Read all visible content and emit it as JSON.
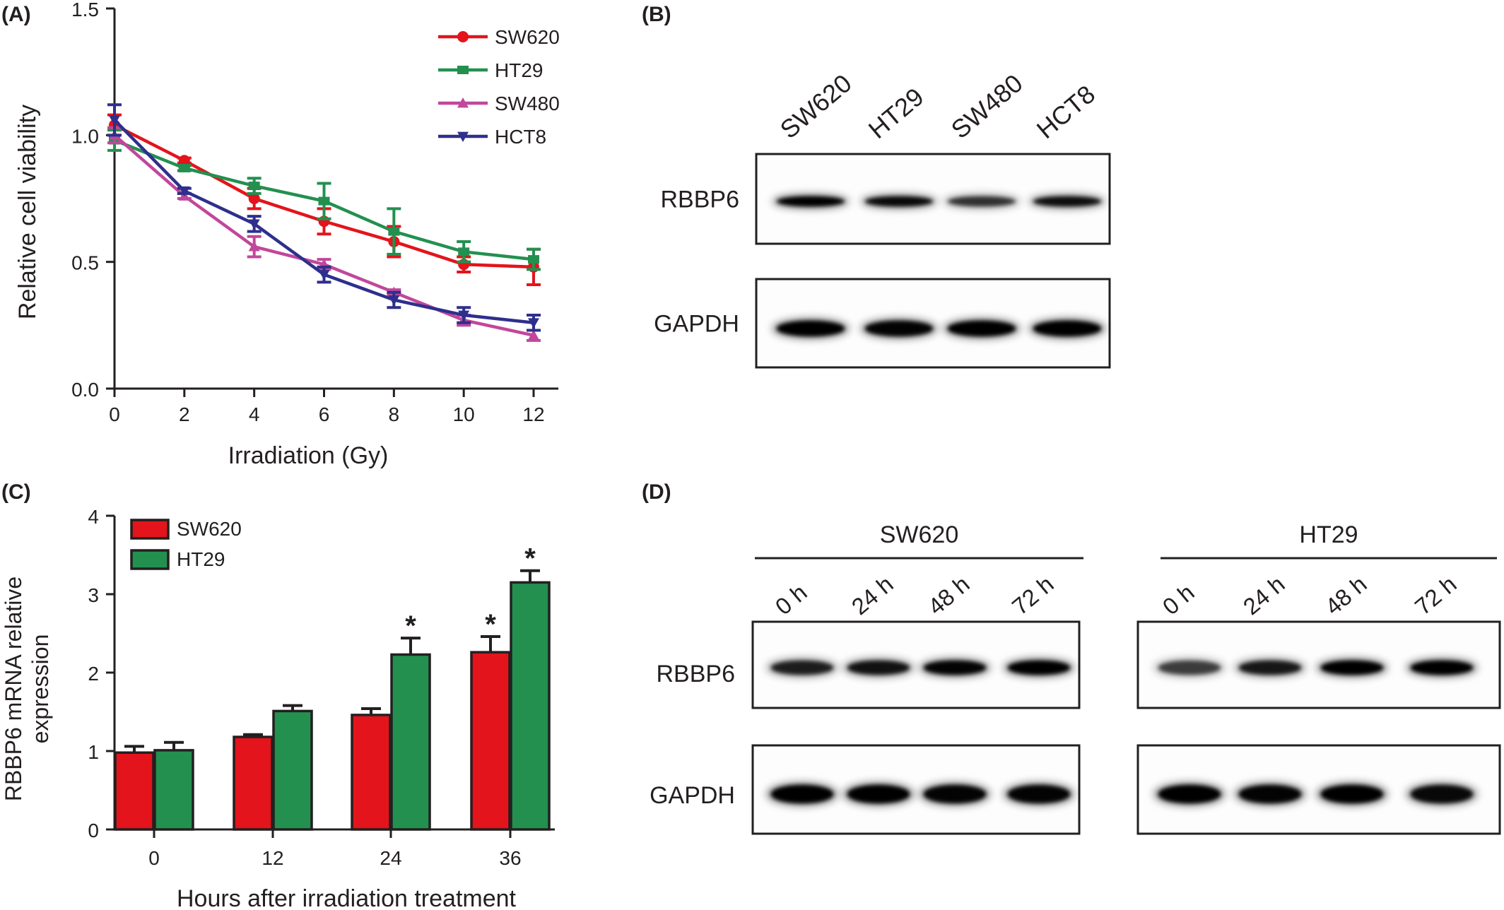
{
  "panels": {
    "a": {
      "label": "(A)"
    },
    "b": {
      "label": "(B)"
    },
    "c": {
      "label": "(C)"
    },
    "d": {
      "label": "(D)"
    }
  },
  "colors": {
    "SW620": "#e3141b",
    "HT29": "#23904f",
    "SW480": "#c1479b",
    "HCT8": "#2e2f8c",
    "axis": "#231f20"
  },
  "chart_data": [
    {
      "id": "A",
      "type": "line",
      "xlabel": "Irradiation  (Gy)",
      "ylabel": "Relative cell viability",
      "x": [
        0,
        2,
        4,
        6,
        8,
        10,
        12
      ],
      "xticks": [
        "0",
        "2",
        "4",
        "6",
        "8",
        "10",
        "12"
      ],
      "yticks": [
        "0.0",
        "0.5",
        "1.0",
        "1.5"
      ],
      "xlim": [
        0,
        12
      ],
      "ylim": [
        0,
        1.5
      ],
      "legend_position": "top-right",
      "series": [
        {
          "name": "SW620",
          "marker": "circle",
          "values": [
            1.04,
            0.9,
            0.75,
            0.66,
            0.58,
            0.49,
            0.48
          ],
          "errors": [
            0.04,
            0.01,
            0.04,
            0.05,
            0.06,
            0.03,
            0.07
          ]
        },
        {
          "name": "HT29",
          "marker": "square",
          "values": [
            0.98,
            0.87,
            0.8,
            0.74,
            0.62,
            0.54,
            0.51
          ],
          "errors": [
            0.04,
            0.01,
            0.03,
            0.07,
            0.09,
            0.04,
            0.04
          ]
        },
        {
          "name": "SW480",
          "marker": "triangle",
          "values": [
            1.0,
            0.76,
            0.56,
            0.49,
            0.38,
            0.27,
            0.21
          ],
          "errors": [
            0.03,
            0.01,
            0.04,
            0.02,
            0.01,
            0.02,
            0.02
          ]
        },
        {
          "name": "HCT8",
          "marker": "triangle-down",
          "values": [
            1.06,
            0.78,
            0.65,
            0.45,
            0.35,
            0.29,
            0.26
          ],
          "errors": [
            0.06,
            0.01,
            0.03,
            0.03,
            0.03,
            0.03,
            0.03
          ]
        }
      ]
    },
    {
      "id": "C",
      "type": "bar",
      "xlabel": "Hours after irradiation treatment",
      "ylabel": [
        "RBBP6 mRNA relative",
        "expression"
      ],
      "categories": [
        "0",
        "12",
        "24",
        "36"
      ],
      "yticks": [
        "0",
        "1",
        "2",
        "3",
        "4"
      ],
      "ylim": [
        0,
        4
      ],
      "legend_position": "top-left",
      "significance_mark": "*",
      "series": [
        {
          "name": "SW620",
          "values": [
            0.98,
            1.18,
            1.46,
            2.26
          ],
          "errors": [
            0.08,
            0.03,
            0.08,
            0.2
          ],
          "significant": [
            false,
            false,
            false,
            true
          ]
        },
        {
          "name": "HT29",
          "values": [
            1.01,
            1.51,
            2.23,
            3.15
          ],
          "errors": [
            0.1,
            0.07,
            0.21,
            0.15
          ],
          "significant": [
            false,
            false,
            true,
            true
          ]
        }
      ]
    }
  ],
  "blot_b": {
    "lanes": [
      "SW620",
      "HT29",
      "SW480",
      "HCT8"
    ],
    "rows": [
      {
        "label": "RBBP6",
        "intensity": [
          1.0,
          0.9,
          0.55,
          0.85
        ]
      },
      {
        "label": "GAPDH",
        "intensity": [
          1.0,
          0.95,
          1.0,
          1.0
        ]
      }
    ]
  },
  "blot_d": {
    "groups": [
      {
        "name": "SW620",
        "lanes": [
          "0 h",
          "24 h",
          "48 h",
          "72 h"
        ],
        "rbbp6": [
          0.7,
          0.8,
          0.95,
          1.0
        ],
        "gapdh": [
          1.0,
          1.0,
          0.95,
          0.95
        ]
      },
      {
        "name": "HT29",
        "lanes": [
          "0 h",
          "24 h",
          "48 h",
          "72 h"
        ],
        "rbbp6": [
          0.45,
          0.75,
          1.0,
          1.0
        ],
        "gapdh": [
          1.0,
          0.95,
          1.0,
          0.9
        ]
      }
    ],
    "row_labels": [
      "RBBP6",
      "GAPDH"
    ]
  }
}
